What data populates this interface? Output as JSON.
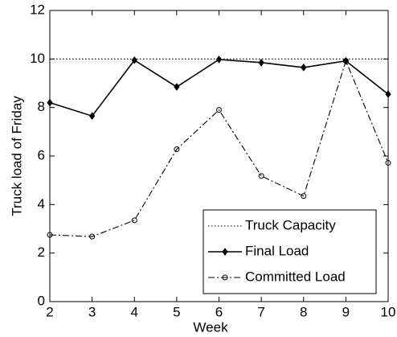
{
  "chart_data": {
    "type": "line",
    "xlabel": "Week",
    "ylabel": "Truck load of Friday",
    "x": [
      2,
      3,
      4,
      5,
      6,
      7,
      8,
      9,
      10
    ],
    "series": [
      {
        "name": "Truck Capacity",
        "color": "#000000",
        "dash": "dotted",
        "marker": "none",
        "values": [
          10,
          10,
          10,
          10,
          10,
          10,
          10,
          10,
          10
        ]
      },
      {
        "name": "Final Load",
        "color": "#000000",
        "dash": "solid",
        "marker": "diamond",
        "values": [
          8.2,
          7.65,
          9.95,
          8.85,
          9.98,
          9.85,
          9.65,
          9.92,
          8.55
        ]
      },
      {
        "name": "Committed Load",
        "color": "#000000",
        "dash": "dashdot",
        "marker": "circle",
        "values": [
          2.75,
          2.68,
          3.35,
          6.28,
          7.9,
          5.18,
          4.35,
          9.92,
          5.72
        ]
      }
    ],
    "xlim": [
      2,
      10
    ],
    "xticks": [
      2,
      3,
      4,
      5,
      6,
      7,
      8,
      9,
      10
    ],
    "ylim": [
      0,
      12
    ],
    "yticks": [
      0,
      2,
      4,
      6,
      8,
      10,
      12
    ],
    "grid": false,
    "legend": "lower right"
  }
}
